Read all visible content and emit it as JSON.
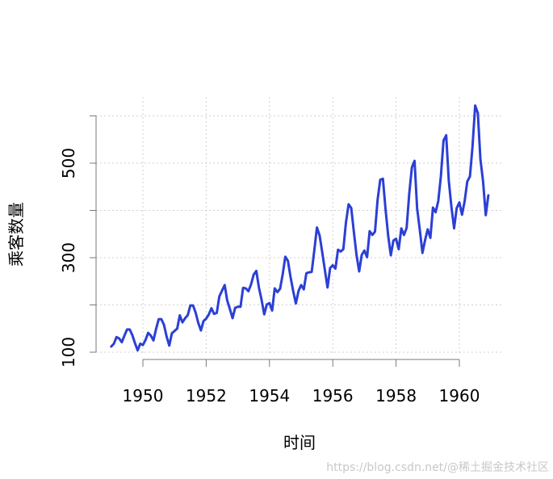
{
  "chart_data": {
    "type": "line",
    "title": "",
    "xlabel": "时间",
    "ylabel": "乘客数量",
    "x_start": 1949,
    "x_step": "monthly",
    "xlim": [
      1948.5,
      1961.5
    ],
    "ylim": [
      100,
      630
    ],
    "x_ticks": [
      1950,
      1952,
      1954,
      1956,
      1958,
      1960
    ],
    "y_ticks": [
      100,
      300,
      500
    ],
    "y_minor_ticks": [
      100,
      200,
      300,
      400,
      500,
      600
    ],
    "grid": true,
    "grid_style": "dotted",
    "line_color": "#2b3fd6",
    "series": [
      {
        "values": [
          112,
          118,
          132,
          129,
          121,
          135,
          148,
          148,
          136,
          119,
          104,
          118,
          115,
          126,
          141,
          135,
          125,
          149,
          170,
          170,
          158,
          133,
          114,
          140,
          145,
          150,
          178,
          163,
          172,
          178,
          199,
          199,
          184,
          162,
          146,
          166,
          171,
          180,
          193,
          181,
          183,
          218,
          230,
          242,
          209,
          191,
          172,
          194,
          196,
          196,
          236,
          235,
          229,
          243,
          264,
          272,
          237,
          211,
          180,
          201,
          204,
          188,
          235,
          227,
          234,
          264,
          302,
          293,
          259,
          229,
          203,
          229,
          242,
          233,
          267,
          269,
          270,
          315,
          364,
          347,
          312,
          274,
          237,
          278,
          284,
          277,
          317,
          313,
          318,
          374,
          413,
          405,
          355,
          306,
          271,
          306,
          315,
          301,
          356,
          348,
          355,
          422,
          465,
          467,
          404,
          347,
          305,
          336,
          340,
          318,
          362,
          348,
          363,
          435,
          491,
          505,
          404,
          359,
          310,
          337,
          360,
          342,
          406,
          396,
          420,
          472,
          548,
          559,
          463,
          407,
          362,
          405,
          417,
          391,
          419,
          461,
          472,
          535,
          622,
          606,
          508,
          461,
          390,
          432
        ]
      }
    ]
  },
  "watermark": "https://blog.csdn.net/@稀土掘金技术社区"
}
